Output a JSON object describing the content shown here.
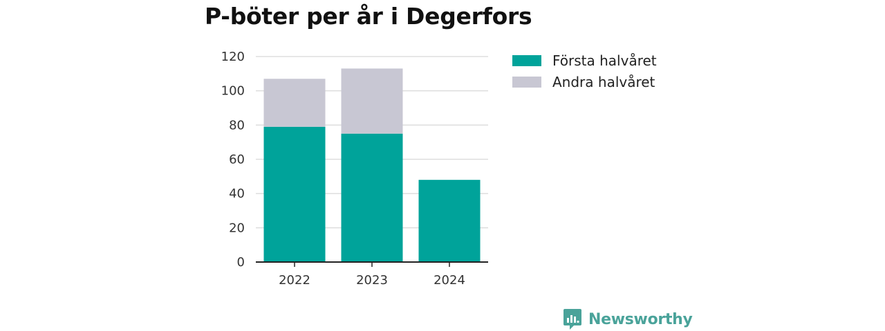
{
  "title": "P-böter per år i Degerfors",
  "brand": "Newsworthy",
  "colors": {
    "first_half": "#00a39a",
    "second_half": "#c8c7d3",
    "grid": "#dddddd",
    "axis": "#222222",
    "brand": "#4aa39a"
  },
  "chart_data": {
    "type": "bar",
    "stacked": true,
    "title": "P-böter per år i Degerfors",
    "xlabel": "",
    "ylabel": "",
    "categories": [
      "2022",
      "2023",
      "2024"
    ],
    "series": [
      {
        "name": "Första halvåret",
        "values": [
          79,
          75,
          48
        ]
      },
      {
        "name": "Andra halvåret",
        "values": [
          28,
          38,
          0
        ]
      }
    ],
    "ylim": [
      0,
      120
    ],
    "yticks": [
      0,
      20,
      40,
      60,
      80,
      100,
      120
    ],
    "grid": true,
    "legend_position": "right"
  }
}
